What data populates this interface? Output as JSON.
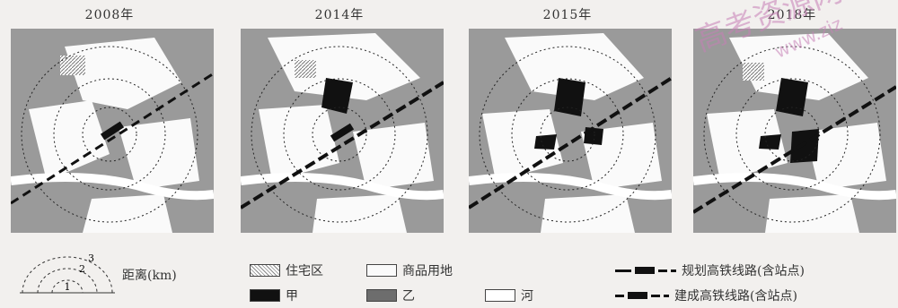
{
  "panels": [
    {
      "year": "2008年"
    },
    {
      "year": "2014年"
    },
    {
      "year": "2015年"
    },
    {
      "year": "2018年"
    }
  ],
  "legend": {
    "distance_label": "距离(km)",
    "rings": [
      "1",
      "2",
      "3"
    ],
    "residential": "住宅区",
    "commercial": "商品用地",
    "jia": "甲",
    "yi": "乙",
    "river": "河",
    "planned_rail": "规划高铁线路(含站点)",
    "built_rail": "建成高铁线路(含站点)"
  },
  "watermark": {
    "text": "高考资源网",
    "url": "www.ziz"
  },
  "colors": {
    "jia": "#111111",
    "yi": "#6d6d6d",
    "commercial": "#fafafa",
    "watermark": "#c77fb6"
  }
}
